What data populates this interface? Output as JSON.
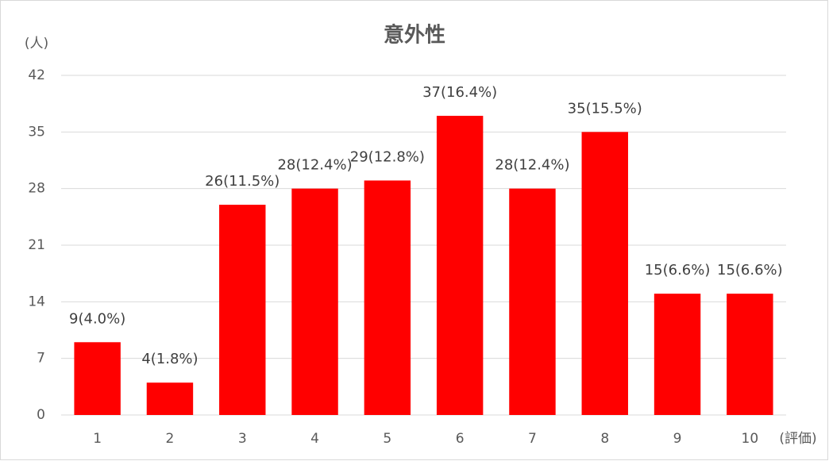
{
  "chart_data": {
    "type": "bar",
    "title": "意外性",
    "y_label": "(人)",
    "x_label": "(評価)",
    "categories": [
      "1",
      "2",
      "3",
      "4",
      "5",
      "6",
      "7",
      "8",
      "9",
      "10"
    ],
    "values": [
      9,
      4,
      26,
      28,
      29,
      37,
      28,
      35,
      15,
      15
    ],
    "value_labels": [
      "9(4.0%)",
      "4(1.8%)",
      "26(11.5%)",
      "28(12.4%)",
      "29(12.8%)",
      "37(16.4%)",
      "28(12.4%)",
      "35(15.5%)",
      "15(6.6%)",
      "15(6.6%)"
    ],
    "color": "#ff0000",
    "ylim": [
      0,
      42
    ],
    "yticks": [
      0,
      7,
      14,
      21,
      28,
      35,
      42
    ],
    "grid": true
  }
}
